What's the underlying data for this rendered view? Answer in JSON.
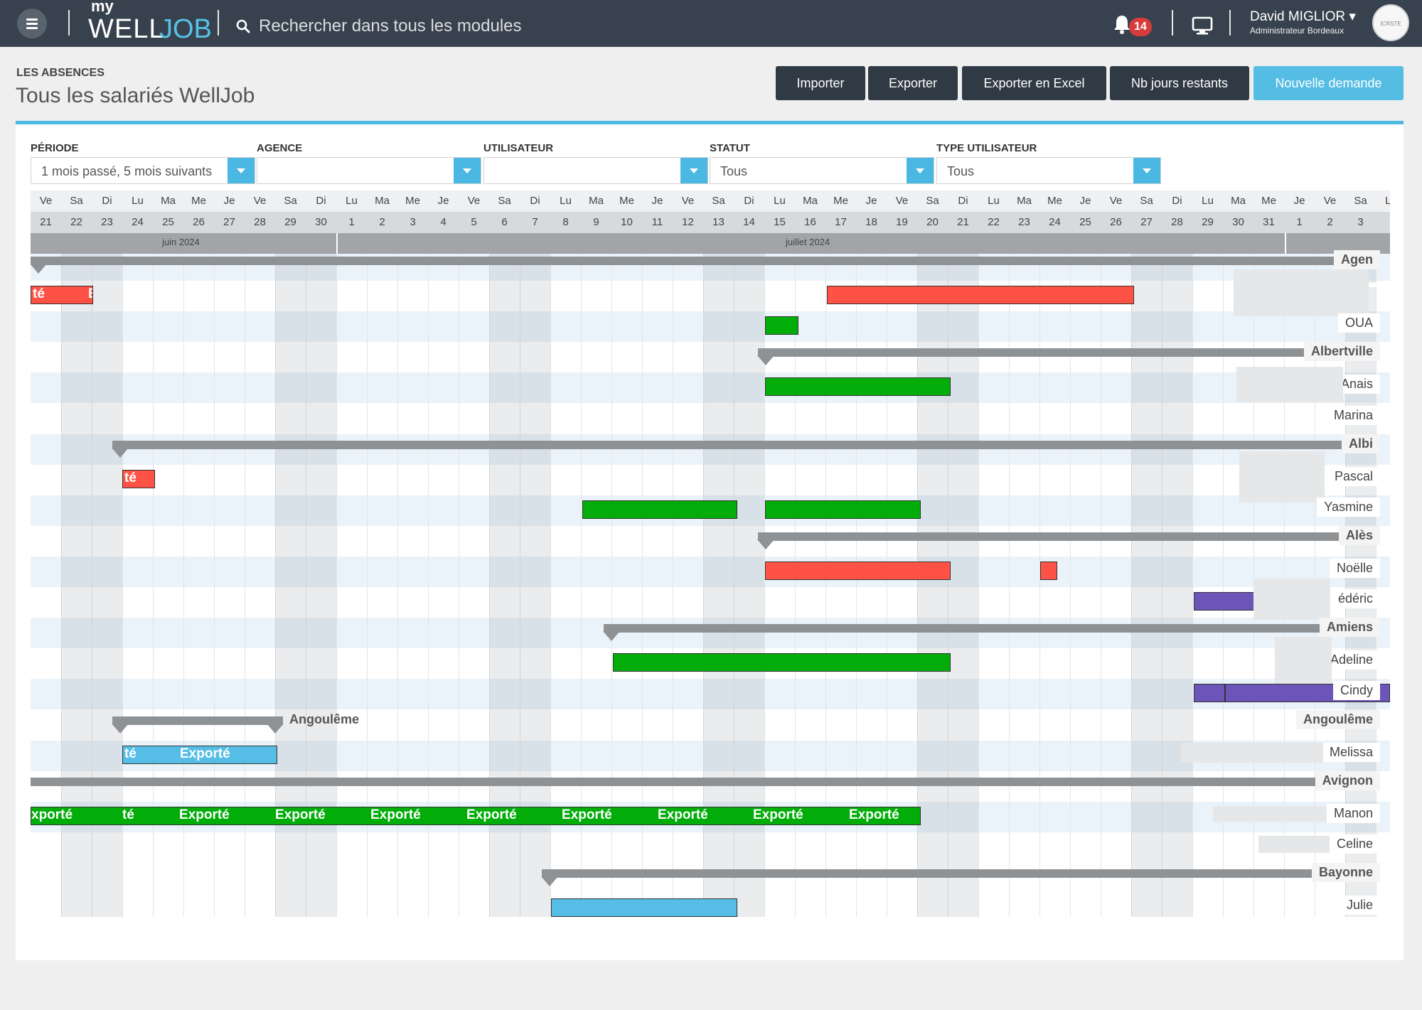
{
  "topbar": {
    "logo_my": "my",
    "logo_well": "WELL",
    "logo_job": "JOB",
    "search_placeholder": "Rechercher dans tous les modules",
    "notification_count": "14",
    "user_name": "David MIGLIOR ▾",
    "user_role": "Administrateur Bordeaux",
    "avatar_text": "ICRSTE"
  },
  "header": {
    "section_label": "LES ABSENCES",
    "title": "Tous les salariés WellJob",
    "buttons": [
      "Importer",
      "Exporter",
      "Exporter en Excel",
      "Nb jours restants",
      "Nouvelle demande"
    ]
  },
  "filters": [
    {
      "label": "PÉRIODE",
      "value": "1 mois passé, 5 mois suivants"
    },
    {
      "label": "AGENCE",
      "value": ""
    },
    {
      "label": "UTILISATEUR",
      "value": ""
    },
    {
      "label": "STATUT",
      "value": "Tous"
    },
    {
      "label": "TYPE UTILISATEUR",
      "value": "Tous"
    }
  ],
  "calendar": {
    "day_names": [
      "Ve",
      "Sa",
      "Di",
      "Lu",
      "Ma",
      "Me",
      "Je",
      "Ve",
      "Sa",
      "Di",
      "Lu",
      "Ma",
      "Me",
      "Je",
      "Ve",
      "Sa",
      "Di",
      "Lu",
      "Ma",
      "Me",
      "Je",
      "Ve",
      "Sa",
      "Di",
      "Lu",
      "Ma",
      "Me",
      "Je",
      "Ve",
      "Sa",
      "Di",
      "Lu",
      "Ma",
      "Me",
      "Je",
      "Ve",
      "Sa",
      "Di",
      "Lu",
      "Ma",
      "Me",
      "Je",
      "Ve",
      "Sa",
      "Lu"
    ],
    "day_numbers": [
      "21",
      "22",
      "23",
      "24",
      "25",
      "26",
      "27",
      "28",
      "29",
      "30",
      "1",
      "2",
      "3",
      "4",
      "5",
      "6",
      "7",
      "8",
      "9",
      "10",
      "11",
      "12",
      "13",
      "14",
      "15",
      "16",
      "17",
      "18",
      "19",
      "20",
      "21",
      "22",
      "23",
      "24",
      "25",
      "26",
      "27",
      "28",
      "29",
      "30",
      "31",
      "1",
      "2",
      "3",
      ""
    ],
    "months": [
      "juin 2024",
      "juillet 2024"
    ]
  },
  "colors": {
    "red": "#ff5246",
    "green": "#02ad0a",
    "blue": "#56bde6",
    "purple": "#6c55b8",
    "accent": "#4db8e0",
    "topbar": "#38424e"
  },
  "groups": [
    {
      "name": "Agen",
      "employees": [
        {
          "name": "",
          "absences": [
            {
              "color": "red",
              "texts": [
                "té",
                "E"
              ]
            },
            {
              "color": "red",
              "texts": []
            }
          ]
        },
        {
          "name": "OUA",
          "absences": [
            {
              "color": "green",
              "texts": []
            }
          ]
        }
      ]
    },
    {
      "name": "Albertville",
      "employees": [
        {
          "name": "CHANCEREL Anais",
          "absences": [
            {
              "color": "green",
              "texts": []
            }
          ]
        },
        {
          "name": "Marina",
          "absences": []
        }
      ]
    },
    {
      "name": "Albi",
      "employees": [
        {
          "name": "Pascal",
          "absences": [
            {
              "color": "red",
              "texts": [
                "té"
              ]
            }
          ]
        },
        {
          "name": "Yasmine",
          "absences": [
            {
              "color": "green",
              "texts": []
            },
            {
              "color": "green",
              "texts": []
            }
          ]
        }
      ]
    },
    {
      "name": "Alès",
      "employees": [
        {
          "name": "Noëlle",
          "absences": [
            {
              "color": "red",
              "texts": []
            },
            {
              "color": "red",
              "texts": []
            }
          ]
        },
        {
          "name": "édéric",
          "absences": [
            {
              "color": "purple",
              "texts": []
            }
          ]
        }
      ]
    },
    {
      "name": "Amiens",
      "employees": [
        {
          "name": "Adeline",
          "absences": [
            {
              "color": "green",
              "texts": []
            }
          ]
        },
        {
          "name": "Cindy",
          "absences": [
            {
              "color": "purple",
              "texts": []
            },
            {
              "color": "purple",
              "texts": []
            }
          ]
        }
      ]
    },
    {
      "name": "Angoulême",
      "employees": [
        {
          "name": "Melissa",
          "absences": [
            {
              "color": "blue",
              "texts": [
                "té",
                "Exporté"
              ]
            }
          ]
        }
      ]
    },
    {
      "name": "Avignon",
      "employees": [
        {
          "name": "Manon",
          "absences": [
            {
              "color": "green",
              "texts": [
                "xporté",
                "té",
                "Exporté",
                "Exporté",
                "Exporté",
                "Exporté",
                "Exporté",
                "Exporté",
                "Exporté",
                "Exporté"
              ]
            }
          ]
        },
        {
          "name": "Celine",
          "absences": []
        }
      ]
    },
    {
      "name": "Bayonne",
      "employees": [
        {
          "name": "Julie",
          "absences": [
            {
              "color": "blue",
              "texts": []
            }
          ]
        }
      ]
    }
  ]
}
